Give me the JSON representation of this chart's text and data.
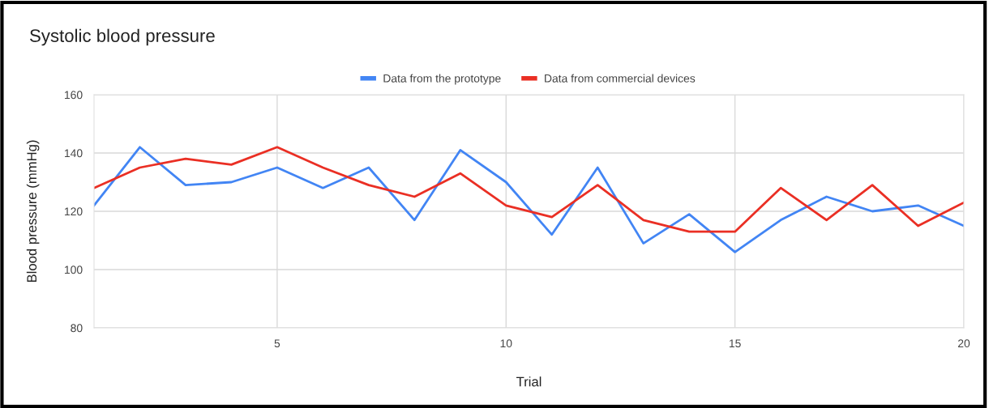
{
  "chart_data": {
    "type": "line",
    "title": "Systolic blood pressure",
    "xlabel": "Trial",
    "ylabel": "Blood pressure (mmHg)",
    "x": [
      1,
      2,
      3,
      4,
      5,
      6,
      7,
      8,
      9,
      10,
      11,
      12,
      13,
      14,
      15,
      16,
      17,
      18,
      19,
      20
    ],
    "series": [
      {
        "name": "Data from the prototype",
        "color": "#4285f4",
        "values": [
          122,
          142,
          129,
          130,
          135,
          128,
          135,
          117,
          141,
          130,
          112,
          135,
          109,
          119,
          106,
          117,
          125,
          120,
          122,
          115
        ]
      },
      {
        "name": "Data from commercial devices",
        "color": "#ea2f24",
        "values": [
          128,
          135,
          138,
          136,
          142,
          135,
          129,
          125,
          133,
          122,
          118,
          129,
          117,
          113,
          113,
          128,
          117,
          129,
          115,
          123
        ]
      }
    ],
    "xlim": [
      1,
      20
    ],
    "xticks": [
      5,
      10,
      15,
      20
    ],
    "ylim": [
      80,
      160
    ],
    "yticks": [
      80,
      100,
      120,
      140,
      160
    ],
    "grid": true,
    "legend": "top",
    "marker": "none",
    "line_style": "solid"
  }
}
